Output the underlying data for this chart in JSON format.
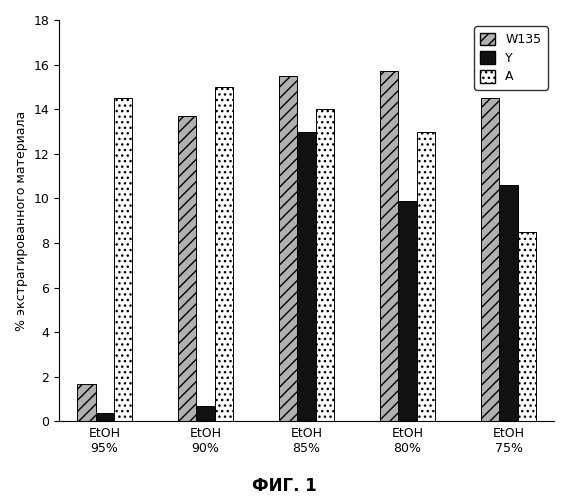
{
  "categories": [
    "EtOH\n95%",
    "EtOH\n90%",
    "EtOH\n85%",
    "EtOH\n80%",
    "EtOH\n75%"
  ],
  "series": {
    "W135": [
      1.7,
      13.7,
      15.5,
      15.7,
      14.5
    ],
    "Y": [
      0.4,
      0.7,
      13.0,
      9.9,
      10.6
    ],
    "A": [
      14.5,
      15.0,
      14.0,
      13.0,
      8.5
    ]
  },
  "ylim": [
    0,
    18
  ],
  "yticks": [
    0,
    2,
    4,
    6,
    8,
    10,
    12,
    14,
    16,
    18
  ],
  "ylabel": "% экстрагированного материала",
  "fig_label": "ФИГ. 1",
  "legend_labels": [
    "W135",
    "Y",
    "A"
  ],
  "bar_width": 0.18,
  "background_color": "#ffffff",
  "hatch_W135": "///",
  "hatch_Y": "",
  "hatch_A": "...",
  "color_W135": "#b0b0b0",
  "color_Y": "#111111",
  "color_A": "#ffffff",
  "edgecolor": "#000000",
  "label_fontsize": 9,
  "legend_fontsize": 9,
  "tick_fontsize": 9,
  "figsize": [
    5.69,
    5.0
  ],
  "dpi": 100
}
